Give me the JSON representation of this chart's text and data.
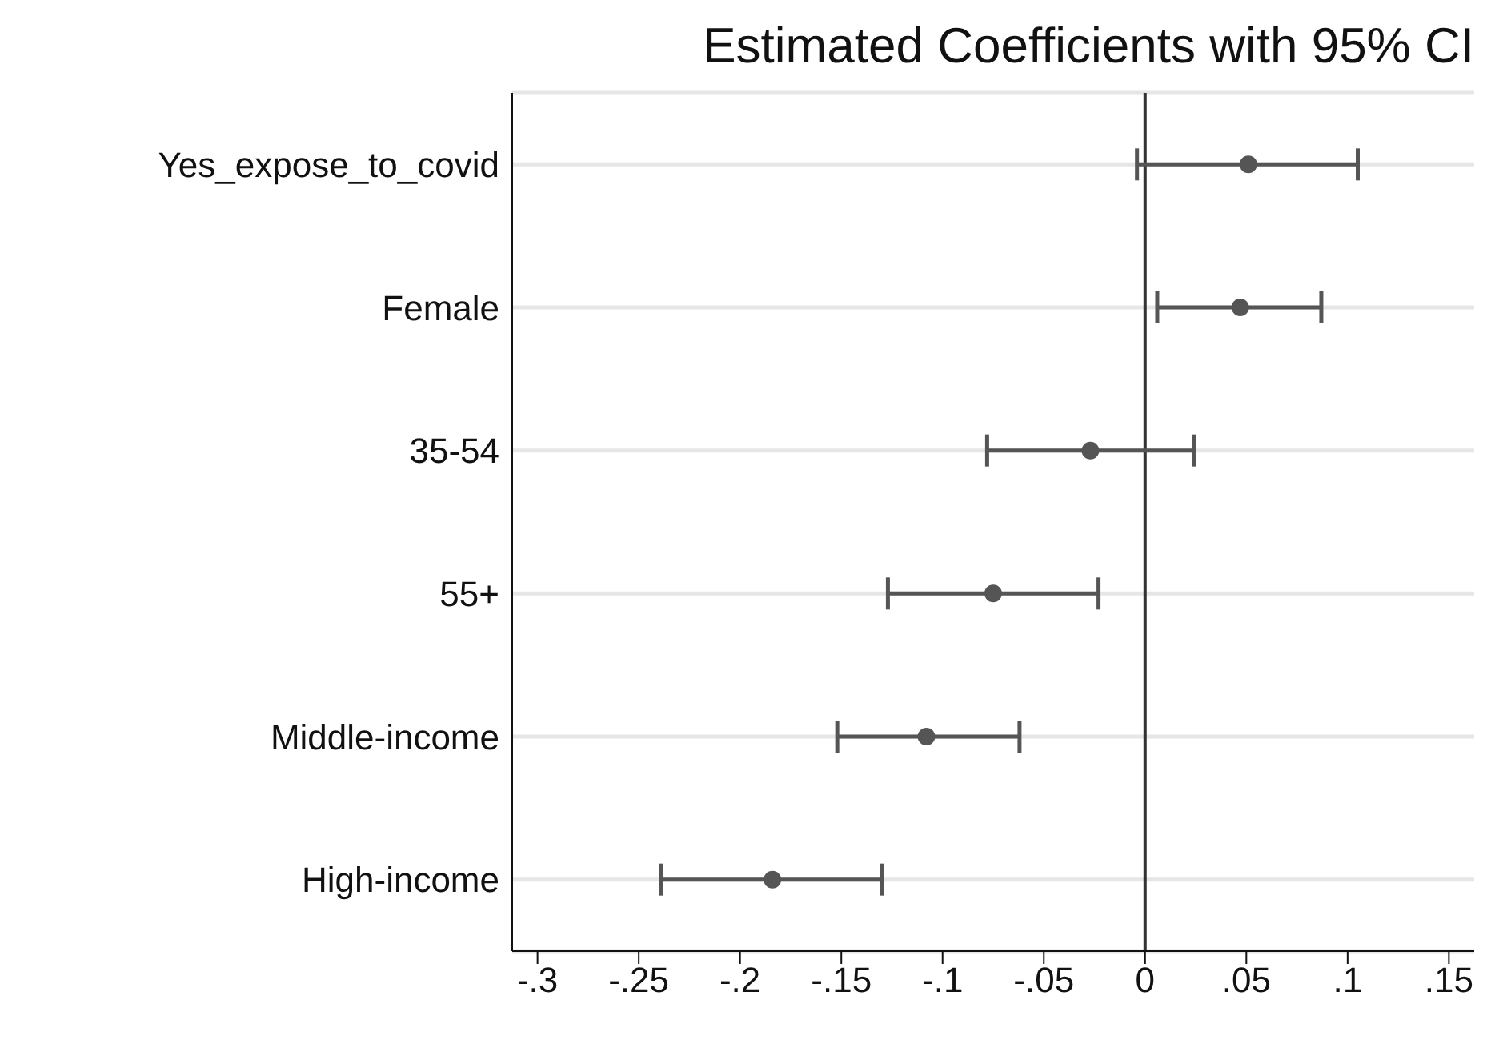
{
  "chart_data": {
    "type": "scatter",
    "title": "Estimated Coefficients with 95% CI",
    "orientation": "horizontal",
    "categories": [
      "Yes_expose_to_covid",
      "Female",
      "35-54",
      "55+",
      "Middle-income",
      "High-income"
    ],
    "values": [
      0.051,
      0.047,
      -0.027,
      -0.075,
      -0.108,
      -0.184
    ],
    "errors": [
      [
        -0.004,
        0.105
      ],
      [
        0.006,
        0.087
      ],
      [
        -0.078,
        0.024
      ],
      [
        -0.127,
        -0.023
      ],
      [
        -0.152,
        -0.062
      ],
      [
        -0.239,
        -0.13
      ]
    ],
    "color": "#555555",
    "marker": "circle",
    "grid": "y",
    "xlim": [
      -0.3125,
      0.1625
    ],
    "xticks": [
      {
        "value": -0.3,
        "label": "-.3"
      },
      {
        "value": -0.25,
        "label": "-.25"
      },
      {
        "value": -0.2,
        "label": "-.2"
      },
      {
        "value": -0.15,
        "label": "-.15"
      },
      {
        "value": -0.1,
        "label": "-.1"
      },
      {
        "value": -0.05,
        "label": "-.05"
      },
      {
        "value": 0,
        "label": "0"
      },
      {
        "value": 0.05,
        "label": ".05"
      },
      {
        "value": 0.1,
        "label": ".1"
      },
      {
        "value": 0.15,
        "label": ".15"
      }
    ],
    "ref_lines": [
      {
        "axis": "x",
        "value": 0,
        "color": "#333333"
      }
    ]
  }
}
